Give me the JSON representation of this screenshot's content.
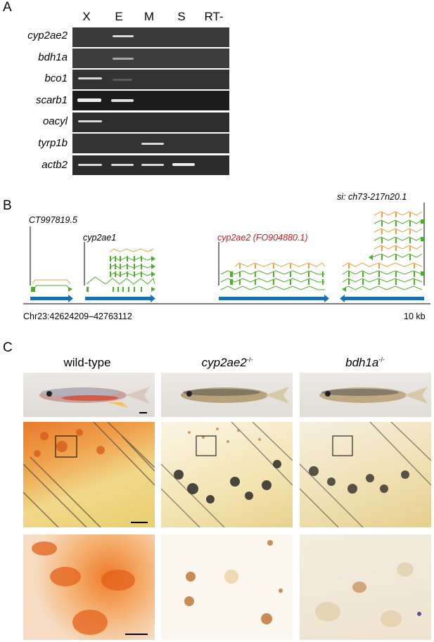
{
  "panelA": {
    "letter": "A",
    "columns": [
      "X",
      "E",
      "M",
      "S",
      "RT-"
    ],
    "genes": [
      "cyp2ae2",
      "bdh1a",
      "bco1",
      "scarb1",
      "oacyl",
      "tyrp1b",
      "actb2"
    ]
  },
  "panelB": {
    "letter": "B",
    "genes": [
      {
        "name": "CT997819.5",
        "color": "#000000"
      },
      {
        "name": "cyp2ae1",
        "color": "#000000"
      },
      {
        "name": "cyp2ae2 (FO904880.1)",
        "color": "#d0161d"
      },
      {
        "name": "si: ch73-217n20.1",
        "color": "#000000"
      }
    ],
    "coordinate": "Chr23:42624209–42763112",
    "scale_label": "10 kb",
    "colors": {
      "track": "#1b6fae",
      "exon_green": "#4caf2a",
      "exon_orange": "#e8a040"
    }
  },
  "panelC": {
    "letter": "C",
    "titles": [
      {
        "main": "wild-type",
        "sup": ""
      },
      {
        "main": "cyp2ae2",
        "sup": "-/-"
      },
      {
        "main": "bdh1a",
        "sup": "-/-"
      }
    ]
  }
}
